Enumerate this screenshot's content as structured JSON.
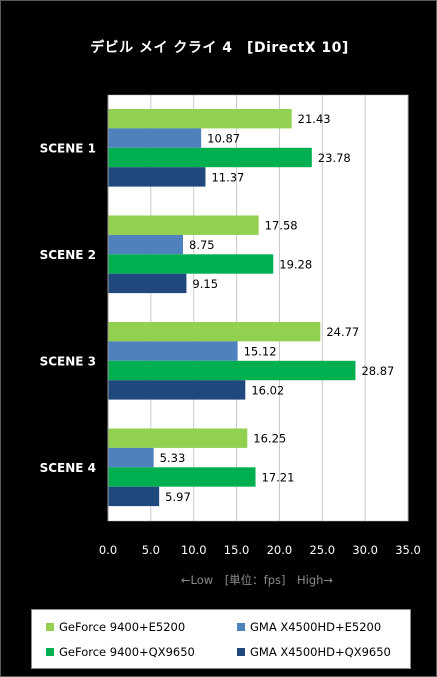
{
  "chart_data": {
    "type": "bar",
    "orientation": "horizontal",
    "title": "デビル メイ クライ 4　[DirectX 10]",
    "categories": [
      "SCENE 1",
      "SCENE 2",
      "SCENE 3",
      "SCENE 4"
    ],
    "series": [
      {
        "name": "GeForce 9400+E5200",
        "color": "#92d050",
        "values": [
          21.43,
          17.58,
          24.77,
          16.25
        ]
      },
      {
        "name": "GMA X4500HD+E5200",
        "color": "#4f81bd",
        "values": [
          10.87,
          8.75,
          15.12,
          5.33
        ]
      },
      {
        "name": "GeForce 9400+QX9650",
        "color": "#00b050",
        "values": [
          23.78,
          19.28,
          28.87,
          17.21
        ]
      },
      {
        "name": "GMA X4500HD+QX9650",
        "color": "#1f497d",
        "values": [
          11.37,
          9.15,
          16.02,
          5.97
        ]
      }
    ],
    "value_labels": [
      [
        "21.43",
        "17.58",
        "24.77",
        "16.25"
      ],
      [
        "10.87",
        "8.75",
        "15.12",
        "5.33"
      ],
      [
        "23.78",
        "19.28",
        "28.87",
        "17.21"
      ],
      [
        "11.37",
        "9.15",
        "16.02",
        "5.97"
      ]
    ],
    "xlim": [
      0,
      35
    ],
    "xticks": [
      "0.0",
      "5.0",
      "10.0",
      "15.0",
      "20.0",
      "25.0",
      "30.0",
      "35.0"
    ],
    "xlabel": "←Low　[単位：fps]　High→",
    "grid": "vertical",
    "legend": "bottom",
    "background": "#000000",
    "plot_background": "#ffffff",
    "gridline_color": "#c8c8c8"
  }
}
